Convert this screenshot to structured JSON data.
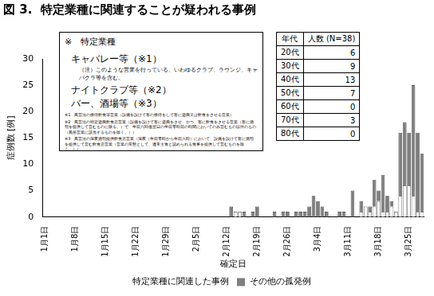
{
  "chart_data": {
    "type": "bar",
    "title": "図 3.  特定業種に関連することが疑われる事例",
    "x_label": "確定日",
    "y_label": "症例数 [例]",
    "categories": [
      "1月1日",
      null,
      null,
      null,
      null,
      null,
      null,
      "1月8日",
      null,
      null,
      null,
      null,
      null,
      null,
      "1月15日",
      null,
      null,
      null,
      null,
      null,
      null,
      "1月22日",
      null,
      null,
      null,
      null,
      null,
      null,
      "1月29日",
      null,
      null,
      null,
      null,
      null,
      null,
      "2月5日",
      null,
      null,
      null,
      null,
      null,
      null,
      "2月12日",
      null,
      null,
      null,
      null,
      null,
      null,
      "2月19日",
      null,
      null,
      null,
      null,
      null,
      null,
      "2月26日",
      null,
      null,
      null,
      null,
      null,
      null,
      "3月4日",
      null,
      null,
      null,
      null,
      null,
      null,
      "3月11日",
      null,
      null,
      null,
      null,
      null,
      null,
      "3月18日",
      null,
      null,
      null,
      null,
      null,
      null,
      "3月25日",
      null,
      null,
      null
    ],
    "series": [
      {
        "name": "特定業種に関連した事例",
        "color": "#ffffff",
        "values": [
          0,
          0,
          0,
          0,
          0,
          0,
          0,
          0,
          0,
          0,
          0,
          0,
          0,
          0,
          0,
          0,
          0,
          0,
          0,
          0,
          0,
          0,
          0,
          0,
          0,
          0,
          0,
          0,
          0,
          0,
          0,
          0,
          0,
          0,
          0,
          0,
          0,
          0,
          0,
          0,
          0,
          0,
          0,
          0,
          1,
          1,
          0,
          0,
          0,
          0,
          0,
          0,
          0,
          0,
          0,
          0,
          0,
          0,
          0,
          0,
          0,
          0,
          0,
          0,
          0,
          0,
          0,
          0,
          0,
          0,
          0,
          0,
          0,
          1,
          2,
          1,
          2,
          3,
          1,
          1,
          2,
          1,
          4,
          6,
          6,
          4,
          1,
          1
        ]
      },
      {
        "name": "その他の孤発例",
        "color": "#7f7f7f",
        "values": [
          0,
          0,
          0,
          0,
          0,
          0,
          0,
          0,
          0,
          0,
          0,
          0,
          0,
          0,
          0,
          0,
          0,
          0,
          0,
          0,
          0,
          0,
          0,
          0,
          0,
          0,
          0,
          0,
          0,
          0,
          0,
          0,
          0,
          0,
          0,
          0,
          0,
          0,
          0,
          0,
          0,
          0,
          0,
          2,
          0,
          0,
          1,
          0,
          1,
          2,
          0,
          0,
          0,
          1,
          0,
          1,
          1,
          0,
          1,
          1,
          1,
          2,
          4,
          3,
          2,
          1,
          0,
          0,
          1,
          1,
          0,
          5,
          0,
          2,
          0,
          1,
          5,
          2,
          7,
          3,
          1,
          0,
          12,
          12,
          10,
          21,
          15,
          11
        ]
      }
    ],
    "stacked": true,
    "ylim": [
      0,
      30
    ],
    "yticks": [
      0,
      5,
      10,
      15,
      20,
      25,
      30
    ],
    "grid": false,
    "legend": "bottom"
  },
  "notes_box": {
    "heading": "※　特定業種",
    "items": [
      {
        "label": "キャバレー等（※1）",
        "note": "（注）このような営業を行っている、いわゆるクラブ、ラウンジ、キャバクラ等を含む。"
      },
      {
        "label": "ナイトクラブ等（※2）"
      },
      {
        "label": "バー、酒場等（※3）"
      }
    ],
    "footnotes": [
      "※1　風営法の接待飲食等営業（設備を設けて客の接待をして客に遊興又は飲食をさせる営業）",
      "※2　風営法の特定遊興飲食店営業（設備を設けて客に遊興をさせ、かつ、客に飲食をさせる営業（客に酒類を提供して営むものに限る。）で、午前六時後翌日の午前零時前の時間においてのみ営むもの以外のもの（風俗営業に該当するものを除く。））",
      "※3　風営法の深夜酒類提供飲食店営業（深夜（午前零時から午前六時）において、設備を設けて客に酒類を提供して営む飲食店営業（営業の常態として、通常主食と認められる食事を提供して営むものを除く。））"
    ]
  },
  "age_table": {
    "header": [
      "年代",
      "人数 (N=38)"
    ],
    "rows": [
      [
        "20代",
        6
      ],
      [
        "30代",
        9
      ],
      [
        "40代",
        13
      ],
      [
        "50代",
        7
      ],
      [
        "60代",
        0
      ],
      [
        "70代",
        3
      ],
      [
        "80代",
        0
      ]
    ]
  }
}
